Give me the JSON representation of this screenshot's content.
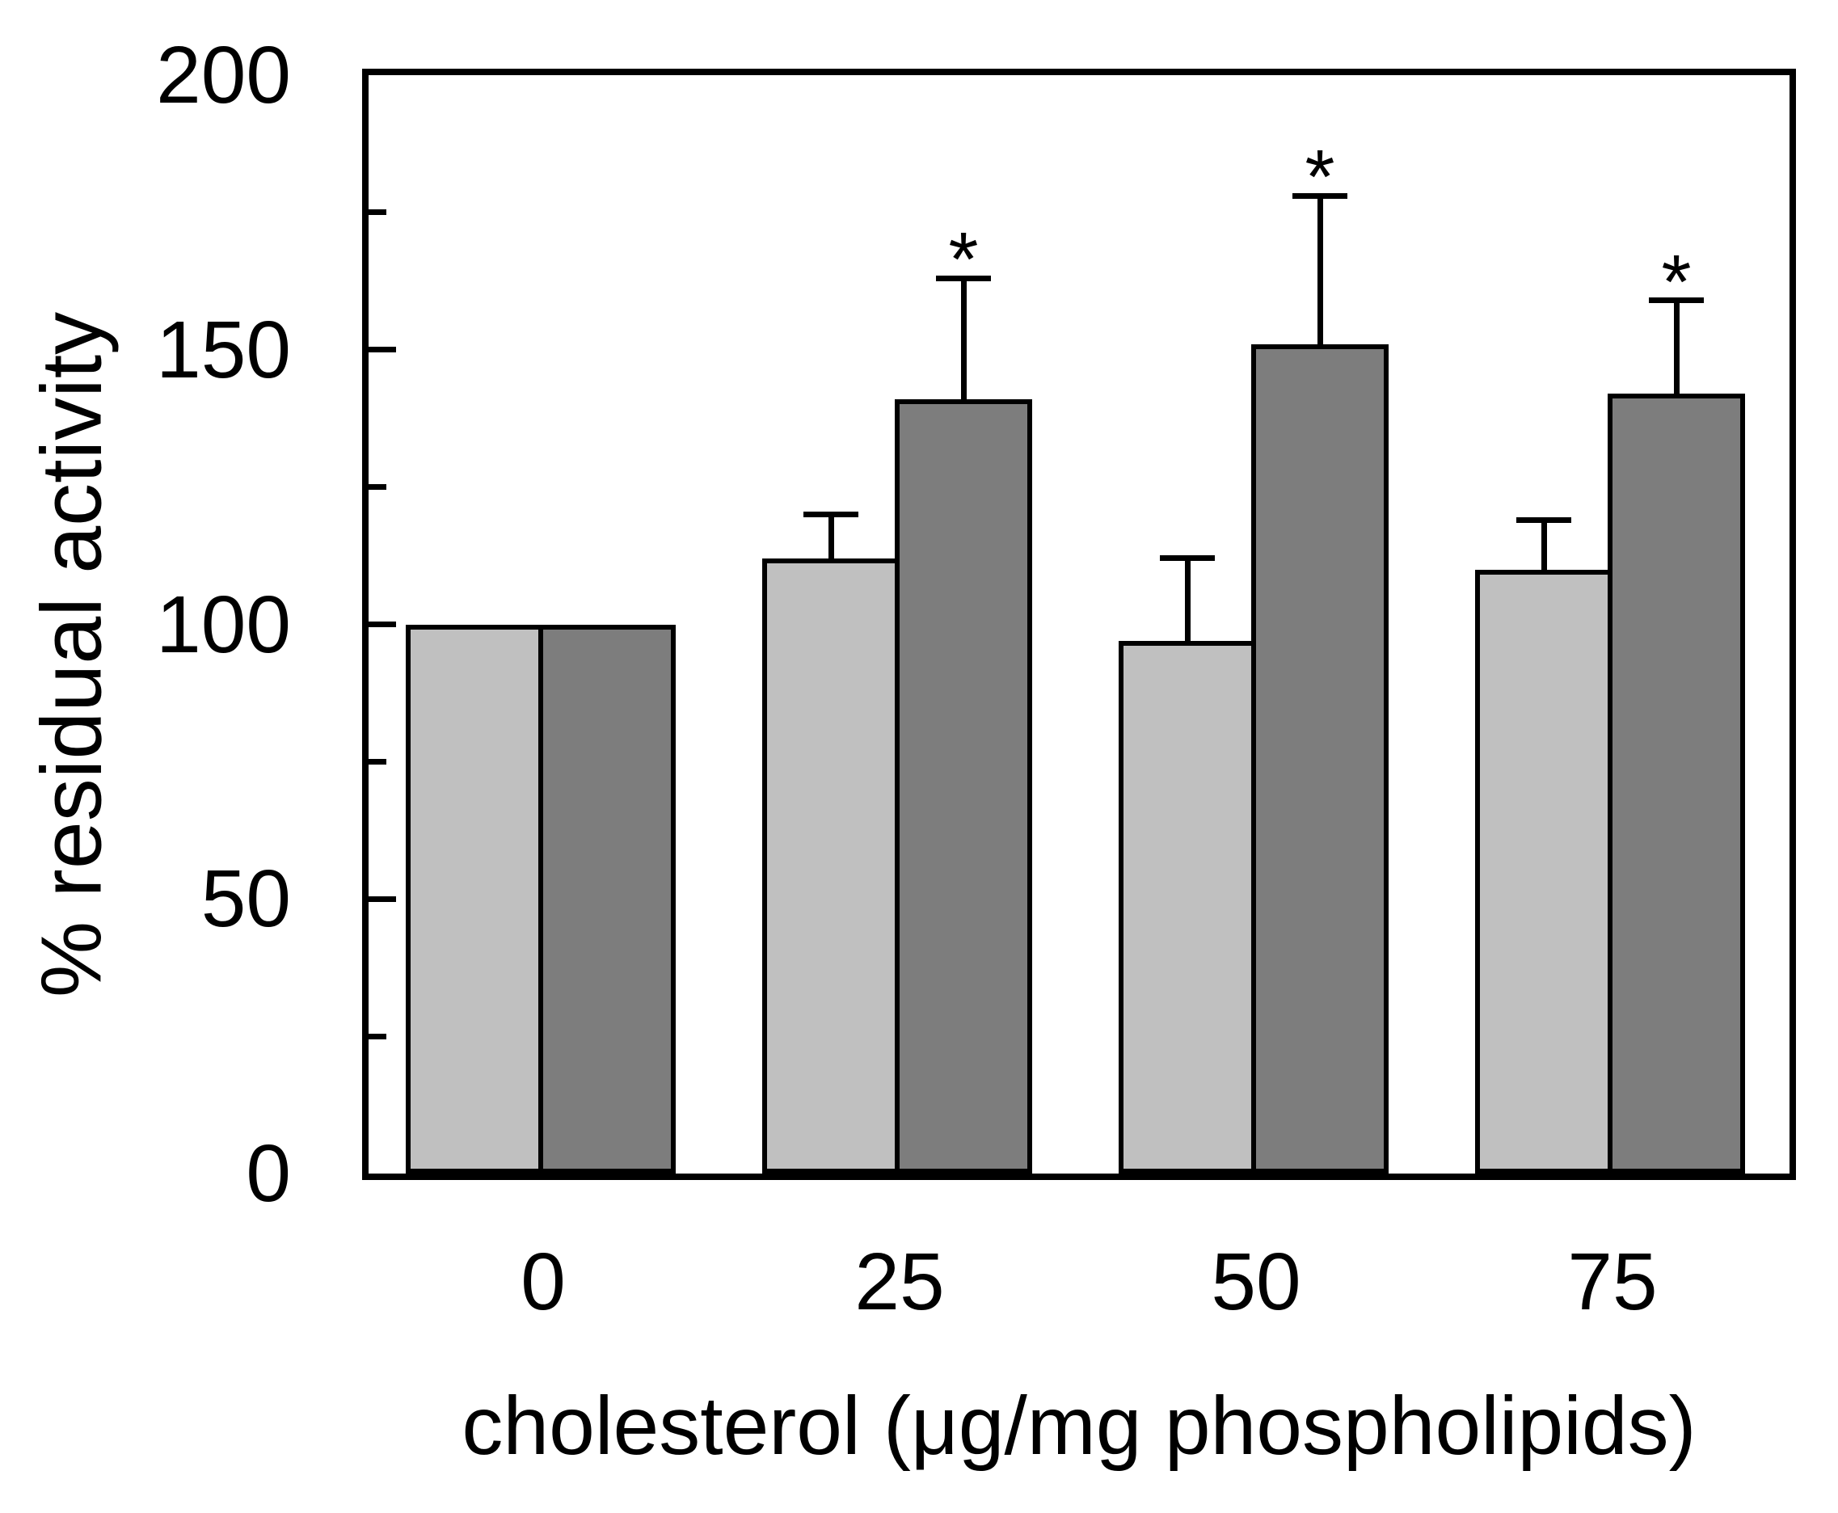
{
  "figure": {
    "background": "#ffffff",
    "frame_color": "#000000",
    "significance_marker": "*"
  },
  "chart_data": {
    "type": "bar",
    "title": "",
    "xlabel": "cholesterol (μg/mg phospholipids)",
    "ylabel": "% residual activity",
    "categories": [
      "0",
      "25",
      "50",
      "75"
    ],
    "series": [
      {
        "name": "light-gray-bars",
        "color": "#c0c0c0",
        "values": [
          100,
          112,
          97,
          110
        ],
        "errors_plus": [
          0,
          8,
          15,
          9
        ],
        "significant": [
          false,
          false,
          false,
          false
        ]
      },
      {
        "name": "dark-gray-bars",
        "color": "#7d7d7d",
        "values": [
          100,
          141,
          151,
          142
        ],
        "errors_plus": [
          0,
          22,
          27,
          17
        ],
        "significant": [
          false,
          true,
          true,
          true
        ]
      }
    ],
    "ylim": [
      0,
      200
    ],
    "yticks_major": [
      0,
      50,
      100,
      150,
      200
    ],
    "yticks_minor": [
      25,
      75,
      125,
      175
    ],
    "grid": false,
    "legend": "none",
    "error_bar_direction": "plus-only",
    "significance_note": "* above dark bars at 25, 50 and 75"
  }
}
